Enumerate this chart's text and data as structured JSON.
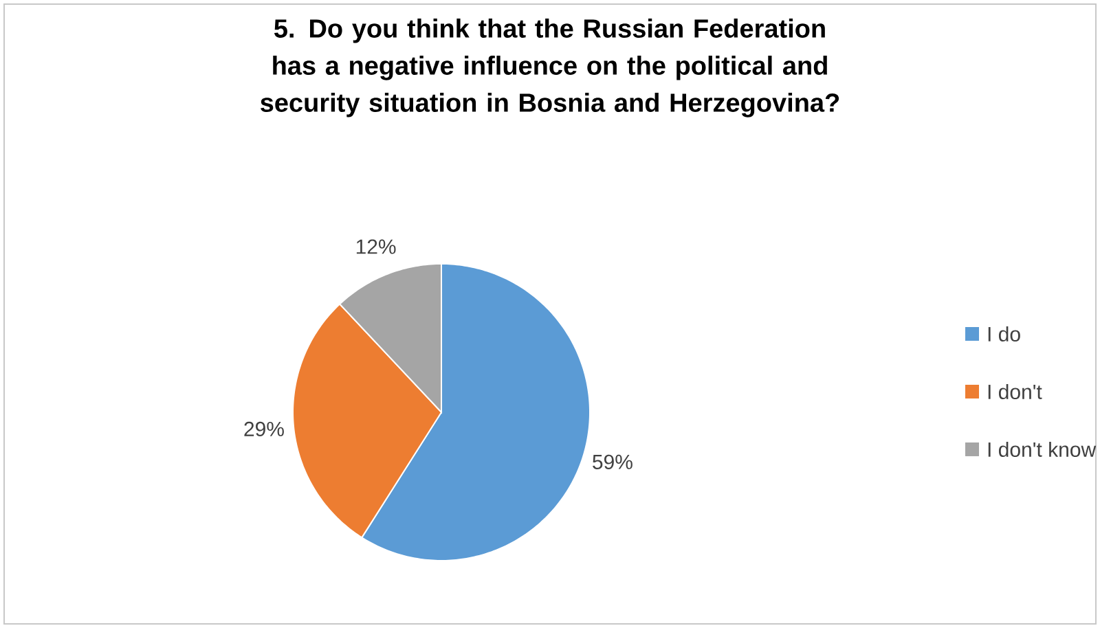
{
  "chart_data": {
    "type": "pie",
    "title": "5. Do you think that the Russian Federation has a negative influence on the political and security situation in Bosnia and Herzegovina?",
    "categories": [
      "I do",
      "I don't",
      "I don't know"
    ],
    "values": [
      59,
      29,
      12
    ],
    "colors": [
      "#5b9bd5",
      "#ed7d31",
      "#a5a5a5"
    ],
    "value_labels": [
      "59%",
      "29%",
      "12%"
    ],
    "legend": "right"
  }
}
